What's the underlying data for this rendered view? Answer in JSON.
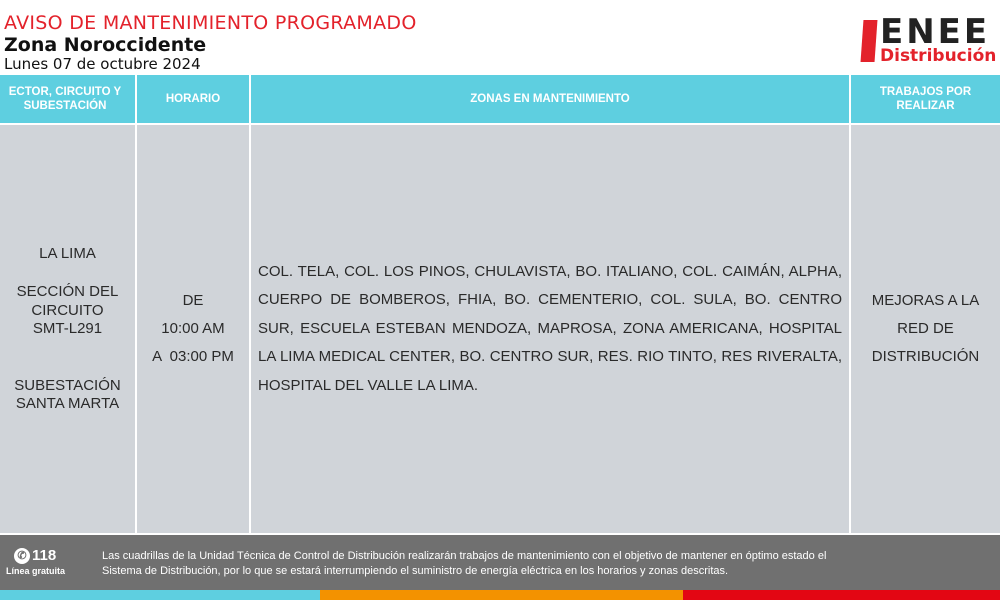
{
  "header": {
    "title": "AVISO DE MANTENIMIENTO PROGRAMADO",
    "zone": "Zona Noroccidente",
    "date": "Lunes 07 de octubre 2024",
    "logo": {
      "main": "ENEE",
      "sub": "Distribución"
    }
  },
  "table": {
    "columns": [
      "ECTOR, CIRCUITO Y SUBESTACIÓN",
      "HORARIO",
      "ZONAS EN MANTENIMIENTO",
      "TRABAJOS POR REALIZAR"
    ],
    "row": {
      "sector": "LA LIMA",
      "circuit_line1": "SECCIÓN DEL",
      "circuit_line2": "CIRCUITO",
      "circuit_line3": "SMT-L291",
      "substation_line1": "SUBESTACIÓN",
      "substation_line2": "SANTA MARTA",
      "schedule_from_label": "DE",
      "schedule_from": "10:00 AM",
      "schedule_to": "A  03:00 PM",
      "zones": "COL. TELA, COL. LOS PINOS, CHULAVISTA, BO. ITALIANO, COL. CAIMÁN, ALPHA, CUERPO DE BOMBEROS, FHIA, BO. CEMENTERIO, COL. SULA, BO. CENTRO SUR, ESCUELA ESTEBAN MENDOZA, MAPROSA, ZONA AMERICANA, HOSPITAL LA LIMA MEDICAL CENTER, BO. CENTRO SUR, RES. RIO TINTO, RES RIVERALTA, HOSPITAL DEL VALLE LA LIMA.",
      "work_line1": "MEJORAS A LA",
      "work_line2": "RED DE",
      "work_line3": "DISTRIBUCIÓN"
    }
  },
  "footer": {
    "phone": "118",
    "phone_icon": "phone-icon",
    "phone_label": "Línea gratuita",
    "note_line1": "Las cuadrillas de la Unidad Técnica de Control de Distribución realizarán trabajos de mantenimiento con el objetivo de mantener en óptimo estado el",
    "note_line2": "Sistema de Distribución, por lo que se estará interrumpiendo el suministro de energía eléctrica en los horarios y zonas descritas."
  },
  "colors": {
    "accent_red": "#e3222b",
    "header_cyan": "#5ecfe0",
    "stripe_orange": "#f39200",
    "stripe_red": "#e30613",
    "footer_gray": "#707070",
    "body_gray": "#d0d4d9"
  }
}
